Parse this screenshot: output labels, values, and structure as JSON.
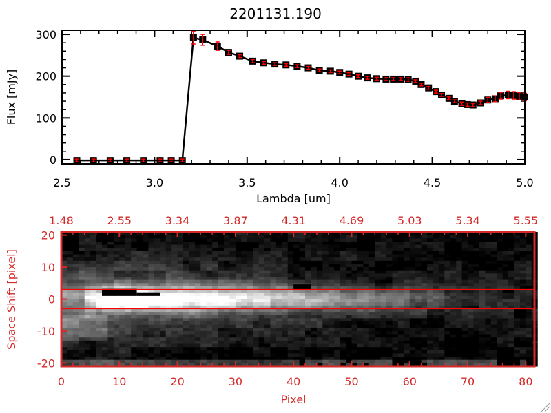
{
  "chart_data": [
    {
      "type": "line",
      "title": "2201131.190",
      "xlabel": "Lambda [um]",
      "ylabel": "Flux [mJy]",
      "xlim": [
        2.5,
        5.0
      ],
      "ylim": [
        -10,
        310
      ],
      "xticks": [
        "2.5",
        "3.0",
        "3.5",
        "4.0",
        "4.5",
        "5.0"
      ],
      "xtick_values": [
        2.5,
        3.0,
        3.5,
        4.0,
        4.5,
        5.0
      ],
      "yticks": [
        "0",
        "100",
        "200",
        "300"
      ],
      "ytick_values": [
        0,
        100,
        200,
        300
      ],
      "line_color": "#000000",
      "errorbar_color": "#ff0000",
      "x": [
        2.58,
        2.67,
        2.76,
        2.85,
        2.94,
        3.03,
        3.09,
        3.15,
        3.21,
        3.26,
        3.34,
        3.4,
        3.46,
        3.53,
        3.59,
        3.65,
        3.71,
        3.77,
        3.83,
        3.89,
        3.95,
        4.0,
        4.05,
        4.1,
        4.15,
        4.2,
        4.25,
        4.29,
        4.33,
        4.37,
        4.41,
        4.44,
        4.48,
        4.52,
        4.55,
        4.59,
        4.62,
        4.66,
        4.69,
        4.72,
        4.76,
        4.8,
        4.84,
        4.87,
        4.91,
        4.94,
        4.97,
        5.0
      ],
      "y": [
        -2,
        -2,
        -2,
        -2,
        -2,
        -2,
        -2,
        -2,
        292,
        287,
        272,
        257,
        248,
        236,
        232,
        229,
        227,
        224,
        220,
        214,
        212,
        209,
        205,
        200,
        196,
        194,
        193,
        193,
        193,
        192,
        188,
        180,
        172,
        163,
        155,
        147,
        140,
        134,
        132,
        131,
        136,
        143,
        146,
        153,
        155,
        154,
        152,
        150
      ],
      "yerr": [
        0,
        0,
        0,
        0,
        0,
        0,
        0,
        0,
        15,
        13,
        10,
        5,
        2,
        4,
        3,
        2,
        2,
        2,
        2,
        2,
        2,
        3,
        3,
        2,
        2,
        3,
        3,
        3,
        3,
        4,
        3,
        2,
        2,
        2,
        2,
        3,
        3,
        4,
        4,
        4,
        4,
        6,
        7,
        8,
        9,
        9,
        9,
        9
      ]
    },
    {
      "type": "heatmap",
      "xlabel": "Pixel",
      "ylabel": "Space Shift [pixel]",
      "xlim": [
        0,
        81.5
      ],
      "ylim": [
        -21,
        21
      ],
      "xticks": [
        "0",
        "10",
        "20",
        "30",
        "40",
        "50",
        "60",
        "70",
        "80"
      ],
      "xtick_values": [
        0,
        10,
        20,
        30,
        40,
        50,
        60,
        70,
        80
      ],
      "top_xticks": [
        "1.48",
        "2.55",
        "3.34",
        "3.87",
        "4.31",
        "4.69",
        "5.03",
        "5.34",
        "5.55"
      ],
      "yticks": [
        "20",
        "10",
        "0",
        "-10",
        "-20"
      ],
      "ytick_values": [
        20,
        10,
        0,
        -10,
        -20
      ],
      "aperture_lines": [
        3,
        -3
      ],
      "center_line": 0,
      "axis_color": "#d42a2a",
      "colormap": "grayscale"
    }
  ]
}
